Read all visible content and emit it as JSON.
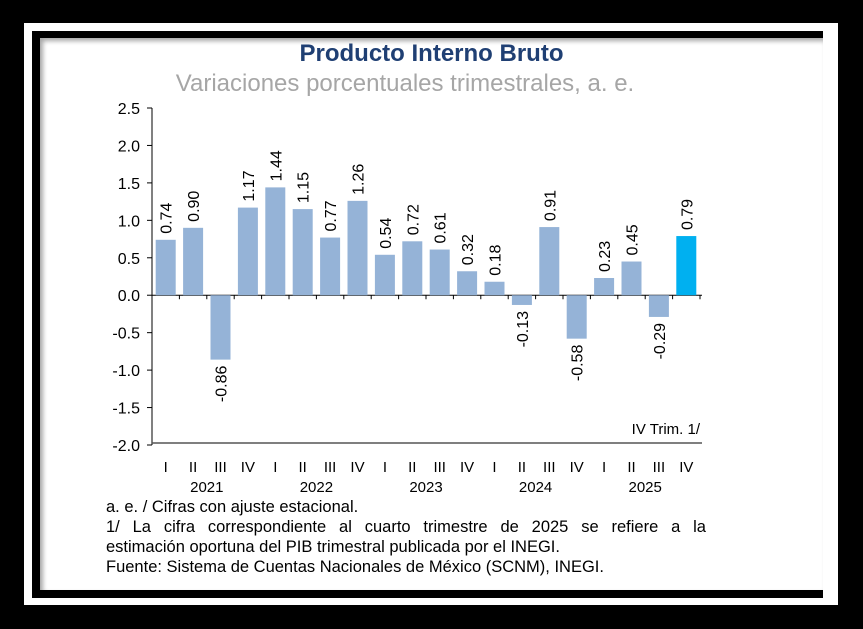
{
  "chart_data": {
    "type": "bar",
    "title": "Producto Interno Bruto",
    "subtitle": "Variaciones porcentuales trimestrales, a. e.",
    "quarters": [
      "I",
      "II",
      "III",
      "IV",
      "I",
      "II",
      "III",
      "IV",
      "I",
      "II",
      "III",
      "IV",
      "I",
      "II",
      "III",
      "IV",
      "I",
      "II",
      "III",
      "IV"
    ],
    "years": [
      "2021",
      "2022",
      "2023",
      "2024",
      "2025"
    ],
    "values": [
      0.74,
      0.9,
      -0.86,
      1.17,
      1.44,
      1.15,
      0.77,
      1.26,
      0.54,
      0.72,
      0.61,
      0.32,
      0.18,
      -0.13,
      0.91,
      -0.58,
      0.23,
      0.45,
      -0.29,
      0.79
    ],
    "labels": [
      "0.74",
      "0.90",
      "-0.86",
      "1.17",
      "1.44",
      "1.15",
      "0.77",
      "1.26",
      "0.54",
      "0.72",
      "0.61",
      "0.32",
      "0.18",
      "-0.13",
      "0.91",
      "-0.58",
      "0.23",
      "0.45",
      "-0.29",
      "0.79"
    ],
    "yticks": [
      "2.5",
      "2.0",
      "1.5",
      "1.0",
      "0.5",
      "0.0",
      "-0.5",
      "-1.0",
      "-1.5",
      "-2.0"
    ],
    "ylim": [
      -2.0,
      2.5
    ],
    "annotation": "IV Trim. 1/",
    "colors": {
      "bar": "#95b3d7",
      "highlight": "#00b0f0",
      "title": "#1f3f73",
      "subtitle": "#a6a6a6"
    }
  },
  "notes": {
    "line1": "a. e. / Cifras con ajuste estacional.",
    "line2": "1/ La cifra correspondiente al cuarto trimestre de 2025 se refiere a la",
    "line3": "estimación oportuna del PIB trimestral publicada por el INEGI.",
    "line4": "Fuente: Sistema de Cuentas Nacionales de México (SCNM), INEGI."
  }
}
